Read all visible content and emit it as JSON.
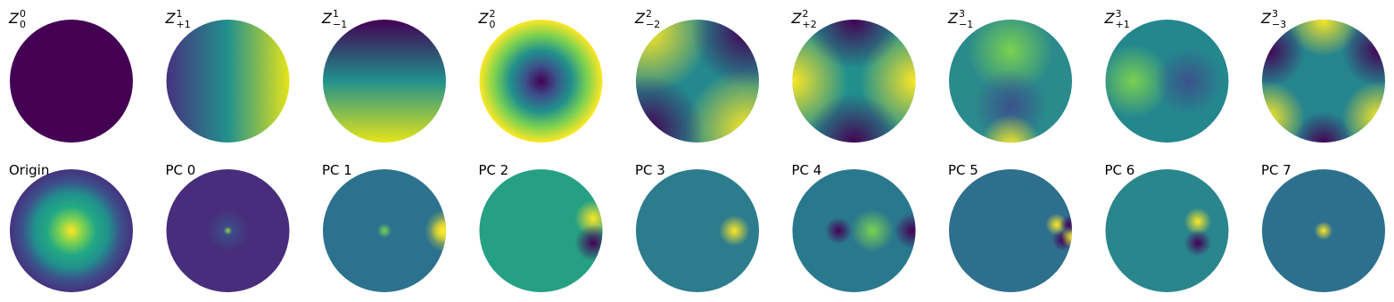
{
  "rows": [
    [
      {
        "base": "Z",
        "sup": "0",
        "sub": "0"
      },
      {
        "base": "Z",
        "sup": "1",
        "sub": "+1"
      },
      {
        "base": "Z",
        "sup": "1",
        "sub": "−1"
      },
      {
        "base": "Z",
        "sup": "2",
        "sub": "0"
      },
      {
        "base": "Z",
        "sup": "2",
        "sub": "−2"
      },
      {
        "base": "Z",
        "sup": "2",
        "sub": "+2"
      },
      {
        "base": "Z",
        "sup": "3",
        "sub": "−1"
      },
      {
        "base": "Z",
        "sup": "3",
        "sub": "+1"
      },
      {
        "base": "Z",
        "sup": "3",
        "sub": "−3"
      }
    ],
    [
      "Origin",
      "PC 0",
      "PC 1",
      "PC 2",
      "PC 3",
      "PC 4",
      "PC 5",
      "PC 6",
      "PC 7"
    ]
  ]
}
